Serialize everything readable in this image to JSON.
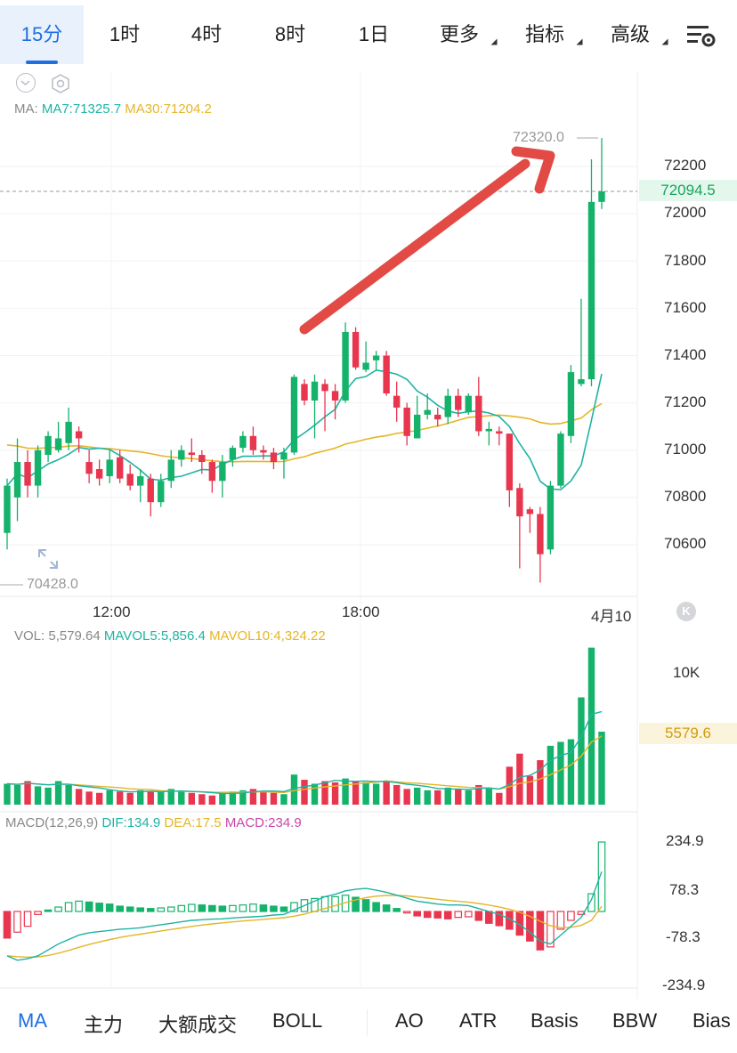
{
  "tabs": [
    {
      "label": "15分",
      "active": true
    },
    {
      "label": "1时"
    },
    {
      "label": "4时"
    },
    {
      "label": "8时"
    },
    {
      "label": "1日"
    },
    {
      "label": "更多"
    },
    {
      "label": "指标"
    },
    {
      "label": "高级"
    }
  ],
  "toolbar": {
    "settings_icon": "chart-settings-icon"
  },
  "main": {
    "ma_prefix": "MA:",
    "ma7": "MA7:71325.7",
    "ma30": "MA30:71204.2",
    "high_label": "72320.0",
    "low_label": "70428.0",
    "price_tag": "72094.5",
    "y_ticks": [
      "72200",
      "72000",
      "71800",
      "71600",
      "71400",
      "71200",
      "71000",
      "70800",
      "70600"
    ],
    "x_ticks": [
      "12:00",
      "18:00",
      "4月10"
    ],
    "colors": {
      "up": "#14b26a",
      "down": "#e8364f",
      "ma7": "#1db3a4",
      "ma30": "#e5b526",
      "arrow": "#e24a45"
    }
  },
  "volume": {
    "vol": "VOL: 5,579.64",
    "mavol5": "MAVOL5:5,856.4",
    "mavol10": "MAVOL10:4,324.22",
    "y_ticks": [
      "10K"
    ],
    "tag": "5579.6"
  },
  "macd": {
    "label": "MACD(12,26,9)",
    "dif": "DIF:134.9",
    "dea": "DEA:17.5",
    "macd": "MACD:234.9",
    "y_ticks": [
      "234.9",
      "78.3",
      "-78.3",
      "-234.9"
    ]
  },
  "bottom_tabs": [
    {
      "label": "MA",
      "active": true
    },
    {
      "label": "主力"
    },
    {
      "label": "大额成交"
    },
    {
      "label": "BOLL"
    },
    {
      "label": "AO"
    },
    {
      "label": "ATR"
    },
    {
      "label": "Basis"
    },
    {
      "label": "BBW"
    },
    {
      "label": "Bias"
    }
  ],
  "chart_data": {
    "type": "candlestick",
    "interval": "15分",
    "y_range": [
      70428.0,
      72320.0
    ],
    "last_price": 72094.5,
    "candles": [
      {
        "o": 70650,
        "c": 70850,
        "h": 70880,
        "l": 70580
      },
      {
        "o": 70800,
        "c": 70950,
        "h": 71050,
        "l": 70700
      },
      {
        "o": 70950,
        "c": 70850,
        "h": 71000,
        "l": 70800
      },
      {
        "o": 70850,
        "c": 71000,
        "h": 71020,
        "l": 70800
      },
      {
        "o": 70980,
        "c": 71060,
        "h": 71080,
        "l": 70950
      },
      {
        "o": 71000,
        "c": 71050,
        "h": 71120,
        "l": 70990
      },
      {
        "o": 71030,
        "c": 71120,
        "h": 71180,
        "l": 71000
      },
      {
        "o": 71080,
        "c": 71050,
        "h": 71100,
        "l": 70990
      },
      {
        "o": 70950,
        "c": 70900,
        "h": 71000,
        "l": 70860
      },
      {
        "o": 70920,
        "c": 70880,
        "h": 70960,
        "l": 70850
      },
      {
        "o": 70890,
        "c": 70960,
        "h": 71000,
        "l": 70860
      },
      {
        "o": 70970,
        "c": 70880,
        "h": 71000,
        "l": 70860
      },
      {
        "o": 70900,
        "c": 70850,
        "h": 70940,
        "l": 70830
      },
      {
        "o": 70850,
        "c": 70890,
        "h": 70920,
        "l": 70780
      },
      {
        "o": 70880,
        "c": 70780,
        "h": 70900,
        "l": 70720
      },
      {
        "o": 70780,
        "c": 70870,
        "h": 70900,
        "l": 70760
      },
      {
        "o": 70870,
        "c": 70960,
        "h": 71000,
        "l": 70840
      },
      {
        "o": 70960,
        "c": 71000,
        "h": 71020,
        "l": 70930
      },
      {
        "o": 70990,
        "c": 70980,
        "h": 71050,
        "l": 70950
      },
      {
        "o": 70980,
        "c": 70950,
        "h": 71000,
        "l": 70900
      },
      {
        "o": 70950,
        "c": 70870,
        "h": 70960,
        "l": 70820
      },
      {
        "o": 70870,
        "c": 70950,
        "h": 70980,
        "l": 70800
      },
      {
        "o": 70960,
        "c": 71010,
        "h": 71020,
        "l": 70930
      },
      {
        "o": 71010,
        "c": 71060,
        "h": 71080,
        "l": 70990
      },
      {
        "o": 71060,
        "c": 71000,
        "h": 71100,
        "l": 70980
      },
      {
        "o": 71000,
        "c": 70990,
        "h": 71020,
        "l": 70960
      },
      {
        "o": 70990,
        "c": 70950,
        "h": 71010,
        "l": 70920
      },
      {
        "o": 70960,
        "c": 70990,
        "h": 71010,
        "l": 70880
      },
      {
        "o": 70990,
        "c": 71310,
        "h": 71320,
        "l": 70980
      },
      {
        "o": 71280,
        "c": 71210,
        "h": 71300,
        "l": 71190
      },
      {
        "o": 71210,
        "c": 71290,
        "h": 71320,
        "l": 71050
      },
      {
        "o": 71280,
        "c": 71250,
        "h": 71300,
        "l": 71080
      },
      {
        "o": 71250,
        "c": 71210,
        "h": 71280,
        "l": 71130
      },
      {
        "o": 71210,
        "c": 71500,
        "h": 71540,
        "l": 71200
      },
      {
        "o": 71500,
        "c": 71350,
        "h": 71520,
        "l": 71340
      },
      {
        "o": 71340,
        "c": 71370,
        "h": 71460,
        "l": 71330
      },
      {
        "o": 71380,
        "c": 71400,
        "h": 71420,
        "l": 71340
      },
      {
        "o": 71400,
        "c": 71240,
        "h": 71420,
        "l": 71230
      },
      {
        "o": 71230,
        "c": 71180,
        "h": 71290,
        "l": 71120
      },
      {
        "o": 71180,
        "c": 71060,
        "h": 71200,
        "l": 71020
      },
      {
        "o": 71050,
        "c": 71150,
        "h": 71230,
        "l": 71050
      },
      {
        "o": 71150,
        "c": 71170,
        "h": 71240,
        "l": 71130
      },
      {
        "o": 71150,
        "c": 71130,
        "h": 71180,
        "l": 71100
      },
      {
        "o": 71140,
        "c": 71230,
        "h": 71260,
        "l": 71110
      },
      {
        "o": 71230,
        "c": 71170,
        "h": 71260,
        "l": 71140
      },
      {
        "o": 71160,
        "c": 71230,
        "h": 71240,
        "l": 71150
      },
      {
        "o": 71230,
        "c": 71080,
        "h": 71310,
        "l": 71060
      },
      {
        "o": 71080,
        "c": 71090,
        "h": 71120,
        "l": 71020
      },
      {
        "o": 71080,
        "c": 71070,
        "h": 71100,
        "l": 71020
      },
      {
        "o": 71070,
        "c": 70830,
        "h": 71070,
        "l": 70760
      },
      {
        "o": 70840,
        "c": 70720,
        "h": 70860,
        "l": 70500
      },
      {
        "o": 70750,
        "c": 70730,
        "h": 70760,
        "l": 70650
      },
      {
        "o": 70730,
        "c": 70560,
        "h": 70760,
        "l": 70440
      },
      {
        "o": 70580,
        "c": 70850,
        "h": 70870,
        "l": 70560
      },
      {
        "o": 70850,
        "c": 71070,
        "h": 71080,
        "l": 70840
      },
      {
        "o": 71060,
        "c": 71330,
        "h": 71360,
        "l": 71030
      },
      {
        "o": 71280,
        "c": 71300,
        "h": 71640,
        "l": 71270
      },
      {
        "o": 71300,
        "c": 72050,
        "h": 72230,
        "l": 71270
      },
      {
        "o": 72050,
        "c": 72094.5,
        "h": 72320,
        "l": 72020
      }
    ]
  }
}
